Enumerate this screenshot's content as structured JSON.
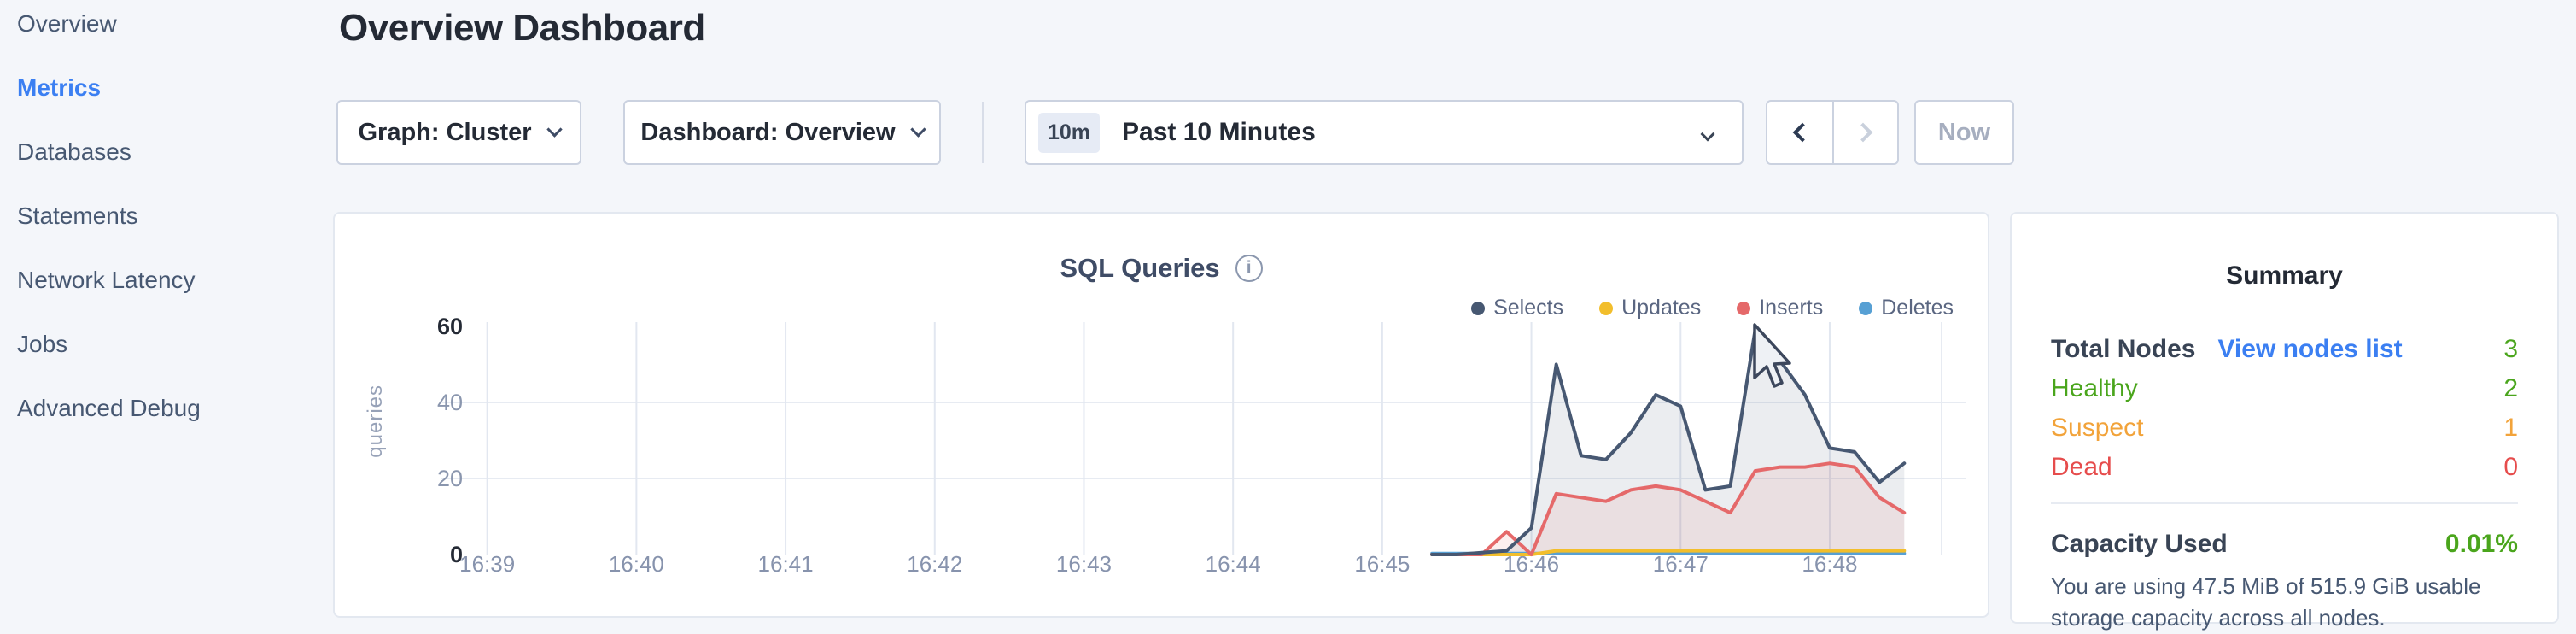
{
  "sidebar": {
    "items": [
      {
        "label": "Overview",
        "active": false
      },
      {
        "label": "Metrics",
        "active": true
      },
      {
        "label": "Databases",
        "active": false
      },
      {
        "label": "Statements",
        "active": false
      },
      {
        "label": "Network Latency",
        "active": false
      },
      {
        "label": "Jobs",
        "active": false
      },
      {
        "label": "Advanced Debug",
        "active": false
      }
    ],
    "active_color": "#3b7ff2"
  },
  "header": {
    "title": "Overview Dashboard",
    "graph_dropdown": "Graph: Cluster",
    "dashboard_dropdown": "Dashboard: Overview"
  },
  "time_controls": {
    "badge": "10m",
    "range_label": "Past 10 Minutes",
    "now_label": "Now",
    "prev_enabled": "true",
    "next_enabled": "false"
  },
  "chart_data": {
    "type": "area",
    "title": "SQL Queries",
    "ylabel": "queries",
    "ylim": [
      0,
      60
    ],
    "x_domain": [
      "16:38:45",
      "16:48:45"
    ],
    "x_domain_seconds": 600,
    "first_tick_offset_seconds": 15,
    "tick_interval_seconds": 60,
    "x_ticks": [
      "16:39",
      "16:40",
      "16:41",
      "16:42",
      "16:43",
      "16:44",
      "16:45",
      "16:46",
      "16:47",
      "16:48"
    ],
    "y_ticks": [
      {
        "value": 0,
        "label": "0",
        "emphasis": true,
        "gridline": false
      },
      {
        "value": 20,
        "label": "20",
        "emphasis": false,
        "gridline": true
      },
      {
        "value": 40,
        "label": "40",
        "emphasis": false,
        "gridline": true
      },
      {
        "value": 60,
        "label": "60",
        "emphasis": true,
        "gridline": false
      }
    ],
    "grid": true,
    "legend_position": "top-right",
    "points_start_offset_seconds": 395,
    "point_interval_seconds": 10,
    "series": [
      {
        "name": "Selects",
        "color": "#475872",
        "fill": "rgba(71,88,114,0.11)",
        "values": [
          0,
          0,
          0.5,
          1,
          7,
          50,
          26,
          25,
          32,
          42,
          39,
          17,
          18,
          59,
          51,
          42,
          28,
          27,
          19,
          24
        ]
      },
      {
        "name": "Updates",
        "color": "#f2be2c",
        "fill": "none",
        "values": [
          0,
          0,
          0,
          0,
          0,
          1,
          1,
          1,
          1,
          1,
          1,
          1,
          1,
          1,
          1,
          1,
          1,
          1,
          1,
          1
        ]
      },
      {
        "name": "Inserts",
        "color": "#e5696a",
        "fill": "rgba(229,105,106,0.11)",
        "values": [
          0,
          0,
          0,
          6,
          0,
          16,
          15,
          14,
          17,
          18,
          17,
          14,
          11,
          22,
          23,
          23,
          24,
          23,
          15,
          11
        ]
      },
      {
        "name": "Deletes",
        "color": "#57a0d4",
        "fill": "none",
        "values": [
          0.3,
          0.3,
          0.3,
          0.3,
          0.3,
          0.3,
          0.3,
          0.3,
          0.3,
          0.3,
          0.3,
          0.3,
          0.3,
          0.3,
          0.3,
          0.3,
          0.3,
          0.3,
          0.3,
          0.3
        ]
      }
    ]
  },
  "summary": {
    "title": "Summary",
    "total_nodes": {
      "label": "Total Nodes",
      "link": "View nodes list",
      "link_color": "#3b7ff2",
      "value": "3",
      "value_color": "#4aa51c"
    },
    "statuses": [
      {
        "label": "Healthy",
        "value": "2",
        "color": "#4aa51c"
      },
      {
        "label": "Suspect",
        "value": "1",
        "color": "#f2a33a"
      },
      {
        "label": "Dead",
        "value": "0",
        "color": "#e64c4c"
      }
    ],
    "capacity": {
      "label": "Capacity Used",
      "value": "0.01%",
      "value_color": "#4aa51c",
      "description": "You are using 47.5 MiB of 515.9 GiB usable storage capacity across all nodes."
    }
  }
}
